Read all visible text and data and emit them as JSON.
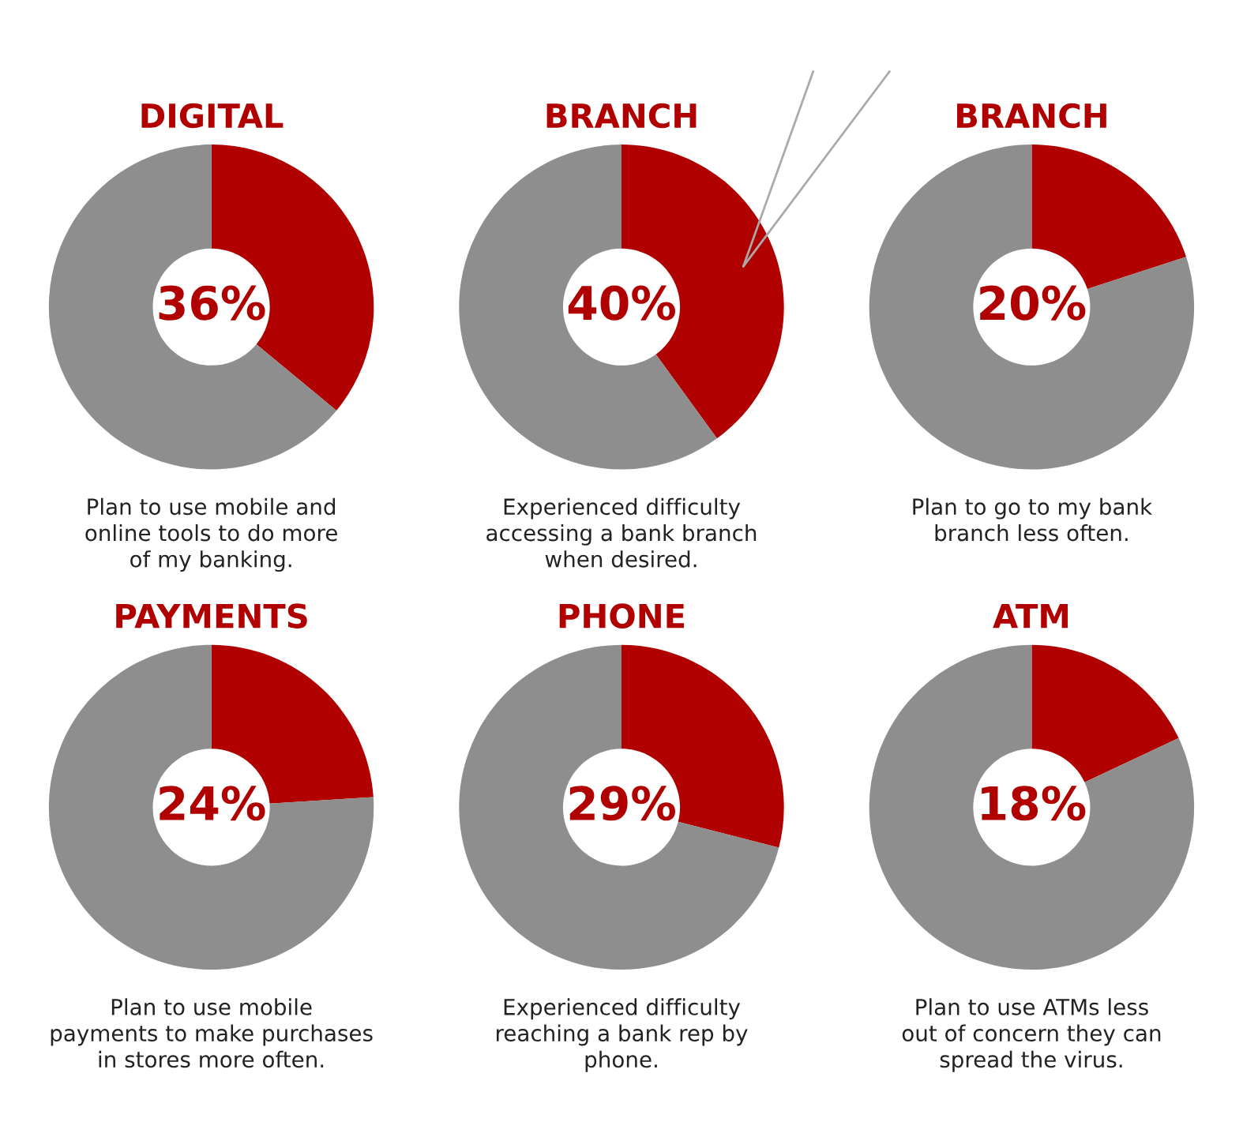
{
  "chart_data": [
    {
      "type": "donut",
      "title": "DIGITAL",
      "categories": [
        null,
        null
      ],
      "values": [
        36,
        64
      ],
      "colors": [
        "#b00000",
        "#8e8e8e"
      ],
      "value_labels": [
        "36%",
        null
      ],
      "annotations": [
        "Plan to use mobile and\nonline tools to do more\nof my banking."
      ]
    },
    {
      "type": "donut",
      "title": "BRANCH",
      "categories": [
        null,
        null
      ],
      "values": [
        40,
        60
      ],
      "colors": [
        "#b00000",
        "#8e8e8e"
      ],
      "value_labels": [
        "40%",
        null
      ],
      "annotations": [
        "Experienced difficulty\naccessing a bank branch\nwhen desired."
      ]
    },
    {
      "type": "donut",
      "title": "BRANCH",
      "categories": [
        null,
        null
      ],
      "values": [
        20,
        80
      ],
      "colors": [
        "#b00000",
        "#8e8e8e"
      ],
      "value_labels": [
        "20%",
        null
      ],
      "annotations": [
        "Plan to go to my bank\nbranch less often."
      ]
    },
    {
      "type": "donut",
      "title": "PAYMENTS",
      "categories": [
        null,
        null
      ],
      "values": [
        24,
        76
      ],
      "colors": [
        "#b00000",
        "#8e8e8e"
      ],
      "value_labels": [
        "24%",
        null
      ],
      "annotations": [
        "Plan to use mobile\npayments to make purchases\nin stores more often."
      ]
    },
    {
      "type": "donut",
      "title": "PHONE",
      "categories": [
        null,
        null
      ],
      "values": [
        29,
        71
      ],
      "colors": [
        "#b00000",
        "#8e8e8e"
      ],
      "value_labels": [
        "29%",
        null
      ],
      "annotations": [
        "Experienced difficulty\nreaching a bank rep by\nphone."
      ]
    },
    {
      "type": "donut",
      "title": "ATM",
      "categories": [
        null,
        null
      ],
      "values": [
        18,
        82
      ],
      "colors": [
        "#b00000",
        "#8e8e8e"
      ],
      "value_labels": [
        "18%",
        null
      ],
      "annotations": [
        "Plan to use ATMs less\nout of concern they can\nspread the virus."
      ]
    }
  ]
}
